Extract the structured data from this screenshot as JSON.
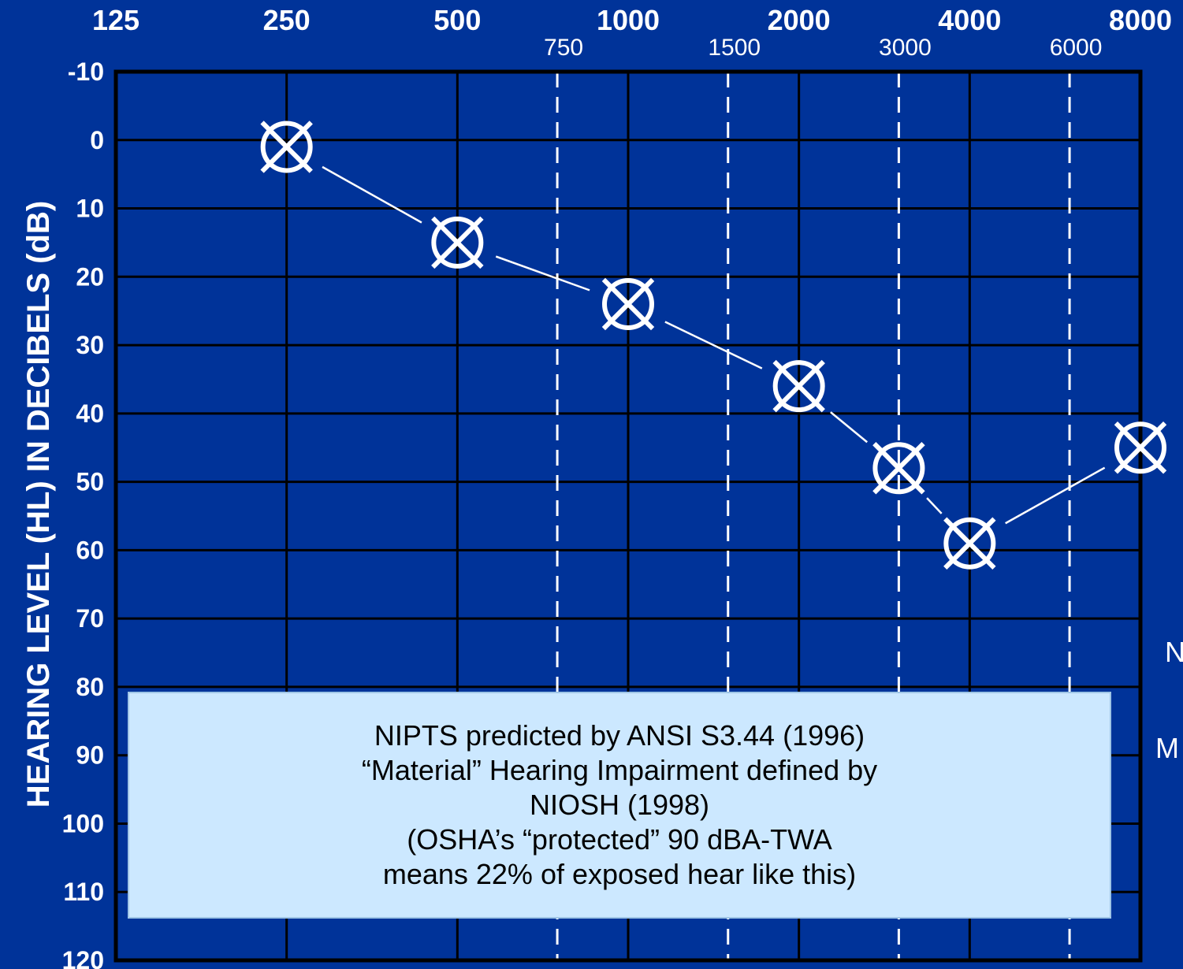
{
  "colors": {
    "background": "#003399",
    "grid": "#000000",
    "data": "#ffffff",
    "annotation_fill": "#cce8ff"
  },
  "chart_data": {
    "type": "line",
    "title": "",
    "ylabel": "HEARING LEVEL (HL) IN DECIBELS (dB)",
    "xlabel": "",
    "x_scale": "log",
    "y_inverted": true,
    "ylim": [
      -10,
      120
    ],
    "yticks": [
      "-10",
      "0",
      "10",
      "20",
      "30",
      "40",
      "50",
      "60",
      "70",
      "80",
      "90",
      "100",
      "110",
      "120"
    ],
    "x_major_ticks": [
      "125",
      "250",
      "500",
      "1000",
      "2000",
      "4000",
      "8000"
    ],
    "x_minor_ticks": [
      "750",
      "1500",
      "3000",
      "6000"
    ],
    "grid": true,
    "marker": "circle-x",
    "series": [
      {
        "x": [
          250,
          500,
          1000,
          2000,
          3000,
          4000,
          8000
        ],
        "y": [
          1,
          15,
          24,
          36,
          48,
          59,
          45
        ]
      }
    ],
    "annotation": [
      "NIPTS predicted by ANSI S3.44 (1996)",
      "“Material” Hearing Impairment defined by",
      "NIOSH (1998)",
      "(OSHA’s “protected” 90 dBA-TWA",
      "means 22% of exposed hear like this)"
    ],
    "side_text": [
      "N",
      "M"
    ]
  }
}
